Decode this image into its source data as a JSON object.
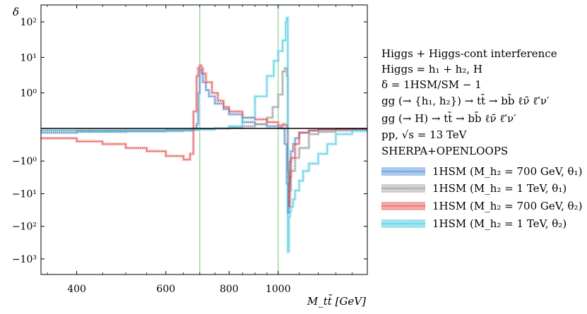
{
  "chart_data": {
    "type": "line",
    "ylabel": "δ",
    "xlabel": "M_tt̄ [GeV]",
    "xscale": "log",
    "yscale": "symlog",
    "xlim": [
      340,
      1500
    ],
    "ylim": [
      -3000,
      300
    ],
    "linthresh": 0.1,
    "x_ticks": [
      {
        "value": 400,
        "label": "400"
      },
      {
        "value": 600,
        "label": "600"
      },
      {
        "value": 800,
        "label": "800"
      },
      {
        "value": 1000,
        "label": "1000"
      }
    ],
    "y_ticks": [
      {
        "value": 100,
        "label": "10²"
      },
      {
        "value": 10,
        "label": "10¹"
      },
      {
        "value": 1,
        "label": "10⁰"
      },
      {
        "value": -1,
        "label": "−10⁰"
      },
      {
        "value": -10,
        "label": "−10¹"
      },
      {
        "value": -100,
        "label": "−10²"
      },
      {
        "value": -1000,
        "label": "−10³"
      }
    ],
    "vertical_lines": [
      {
        "x": 700,
        "color": "#8fd88f"
      },
      {
        "x": 1000,
        "color": "#8fd88f"
      }
    ],
    "horizontal_line": 0,
    "info_lines": [
      "Higgs + Higgs-cont interference",
      "Higgs = h₁ + h₂, H",
      "δ = 1HSM/SM − 1",
      "gg (→ {h₁, h₂}) → tt̄ → bb̄ ℓν̄ ℓ̄′ν′",
      "gg (→ H) → tt̄ → bb̄ ℓν̄ ℓ̄′ν′",
      "pp, √s = 13 TeV",
      "SHERPA+OPENLOOPS"
    ],
    "series": [
      {
        "name": "1HSM (M_h₂ = 700 GeV, θ₁)",
        "color": "#1f5fb4",
        "band_color": "#a8c8ee",
        "x": [
          340,
          400,
          450,
          500,
          550,
          600,
          650,
          680,
          690,
          695,
          700,
          705,
          710,
          720,
          730,
          750,
          780,
          800,
          850,
          900,
          950,
          1000,
          1020,
          1030,
          1040,
          1045,
          1050,
          1055,
          1060,
          1070,
          1080,
          1100,
          1150,
          1200,
          1300,
          1400,
          1500
        ],
        "values": [
          -0.1,
          -0.08,
          -0.08,
          -0.07,
          -0.07,
          -0.06,
          -0.05,
          -0.03,
          0.1,
          1.0,
          4.5,
          3.5,
          2.0,
          1.2,
          0.8,
          0.5,
          0.35,
          0.25,
          0.15,
          0.1,
          0.05,
          0.02,
          0.0,
          -0.3,
          -5,
          -40,
          -5,
          -1,
          -0.5,
          -0.3,
          -0.2,
          -0.1,
          -0.05,
          -0.03,
          -0.02,
          -0.02,
          -0.02
        ]
      },
      {
        "name": "1HSM (M_h₂ = 1 TeV, θ₁)",
        "color": "#6e6e6e",
        "band_color": "#d0d0d0",
        "x": [
          340,
          400,
          500,
          600,
          650,
          700,
          750,
          800,
          850,
          900,
          950,
          975,
          1000,
          1020,
          1030,
          1040,
          1045,
          1050,
          1055,
          1060,
          1080,
          1100,
          1150,
          1200,
          1300,
          1400,
          1500
        ],
        "values": [
          -0.05,
          -0.04,
          -0.04,
          -0.03,
          -0.03,
          -0.02,
          0.0,
          0.02,
          0.05,
          0.1,
          0.2,
          0.4,
          0.9,
          4,
          5,
          3,
          -1,
          -10,
          -8,
          -2,
          -0.8,
          -0.4,
          -0.15,
          -0.08,
          -0.05,
          -0.03,
          -0.02
        ]
      },
      {
        "name": "1HSM (M_h₂ = 700 GeV, θ₂)",
        "color": "#d42020",
        "band_color": "#f4a8a8",
        "x": [
          340,
          400,
          450,
          500,
          550,
          600,
          650,
          670,
          680,
          690,
          695,
          700,
          705,
          710,
          720,
          740,
          760,
          780,
          800,
          850,
          900,
          950,
          1000,
          1020,
          1030,
          1040,
          1045,
          1050,
          1055,
          1060,
          1080,
          1100,
          1150,
          1200,
          1300,
          1400,
          1500
        ],
        "values": [
          -0.2,
          -0.25,
          -0.3,
          -0.4,
          -0.5,
          -0.7,
          -0.9,
          -0.6,
          0.3,
          3.0,
          5.0,
          6.0,
          5.0,
          3.5,
          2.0,
          1.0,
          0.6,
          0.4,
          0.3,
          0.2,
          0.18,
          0.15,
          0.12,
          0.1,
          0.08,
          0.05,
          -2.0,
          -25,
          -3,
          -0.8,
          -0.3,
          -0.1,
          -0.05,
          -0.03,
          -0.02,
          -0.02,
          -0.02
        ]
      },
      {
        "name": "1HSM (M_h₂ = 1 TeV, θ₂)",
        "color": "#18c0d8",
        "band_color": "#9fe4ef",
        "x": [
          340,
          400,
          500,
          600,
          650,
          700,
          750,
          800,
          850,
          900,
          950,
          980,
          1000,
          1020,
          1035,
          1040,
          1045,
          1050,
          1055,
          1060,
          1070,
          1080,
          1100,
          1120,
          1150,
          1200,
          1250,
          1300,
          1400,
          1500
        ],
        "values": [
          -0.06,
          -0.06,
          -0.05,
          -0.04,
          -0.03,
          -0.02,
          0.0,
          0.05,
          0.2,
          0.8,
          3.0,
          8.0,
          15.0,
          30.0,
          100.0,
          130.0,
          -600,
          -50,
          -35,
          -25,
          -15,
          -8,
          -4,
          -2,
          -1.2,
          -0.6,
          -0.3,
          -0.15,
          -0.06,
          -0.03
        ]
      }
    ]
  }
}
